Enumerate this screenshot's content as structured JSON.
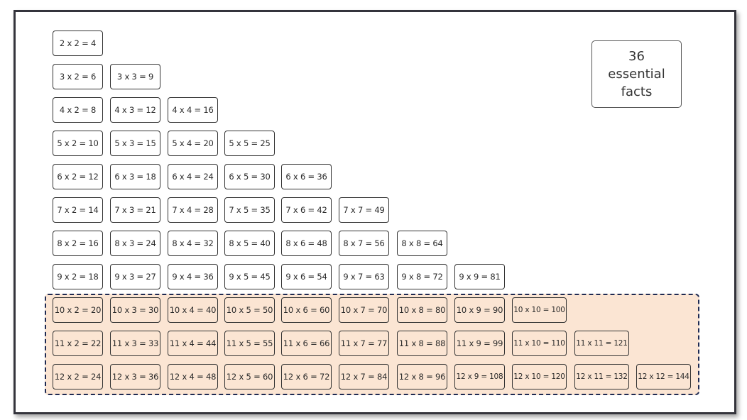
{
  "summary": {
    "count": "36",
    "line2": "essential",
    "line3": "facts"
  },
  "highlight_color": "#fbe5d3",
  "highlighted_rows": [
    10,
    11,
    12
  ],
  "rows": [
    [
      "2 x 2 = 4"
    ],
    [
      "3 x 2 = 6",
      "3 x 3 = 9"
    ],
    [
      "4 x 2 = 8",
      "4 x 3 = 12",
      "4 x 4 = 16"
    ],
    [
      "5 x 2 = 10",
      "5 x 3 = 15",
      "5 x 4 = 20",
      "5 x 5 = 25"
    ],
    [
      "6 x 2 = 12",
      "6 x 3 = 18",
      "6 x 4 = 24",
      "6 x 5 = 30",
      "6 x 6 = 36"
    ],
    [
      "7 x 2 = 14",
      "7 x 3 = 21",
      "7 x 4 = 28",
      "7 x 5 = 35",
      "7 x 6 = 42",
      "7 x 7 = 49"
    ],
    [
      "8 x 2 = 16",
      "8 x 3 = 24",
      "8 x 4 = 32",
      "8 x 5 = 40",
      "8 x 6 = 48",
      "8 x 7 = 56",
      "8 x 8 = 64"
    ],
    [
      "9 x 2 = 18",
      "9 x 3 = 27",
      "9 x 4 = 36",
      "9 x 5 = 45",
      "9 x 6 = 54",
      "9 x 7 = 63",
      "9 x 8 = 72",
      "9 x 9 = 81"
    ],
    [
      "10 x 2 = 20",
      "10 x 3 = 30",
      "10 x 4 = 40",
      "10 x 5 = 50",
      "10 x 6 = 60",
      "10 x 7 = 70",
      "10 x 8 = 80",
      "10 x 9 = 90",
      "10 x 10 = 100"
    ],
    [
      "11 x 2 = 22",
      "11 x 3 = 33",
      "11 x 4 = 44",
      "11 x 5 = 55",
      "11 x 6 = 66",
      "11 x 7 = 77",
      "11 x 8 = 88",
      "11 x 9 = 99",
      "11 x 10 = 110",
      "11 x 11 = 121"
    ],
    [
      "12 x 2 = 24",
      "12 x 3 = 36",
      "12 x 4 = 48",
      "12 x 5 = 60",
      "12 x 6 = 72",
      "12 x 7 = 84",
      "12 x 8 = 96",
      "12 x 9 = 108",
      "12 x 10 = 120",
      "12 x 11 = 132",
      "12 x 12 = 144"
    ]
  ]
}
